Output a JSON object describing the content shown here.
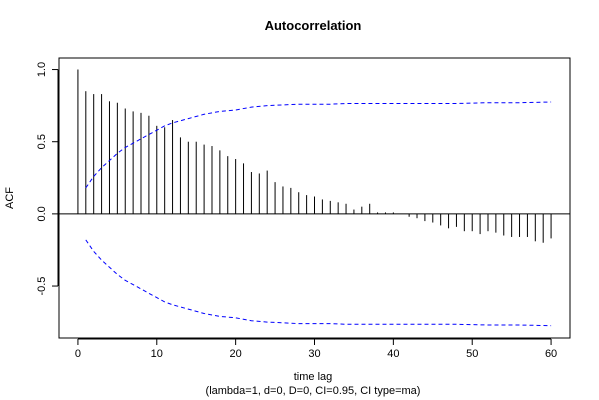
{
  "chart_data": {
    "type": "bar",
    "title": "Autocorrelation",
    "xlabel": "time lag",
    "subtitle": "(lambda=1, d=0, D=0, CI=0.95, CI type=ma)",
    "ylabel": "ACF",
    "xlim": [
      -2.4,
      62.4
    ],
    "ylim": [
      -0.86,
      1.08
    ],
    "x_ticks": [
      "0",
      "10",
      "20",
      "30",
      "40",
      "50",
      "60"
    ],
    "y_ticks": [
      "-0.5",
      "0.0",
      "0.5",
      "1.0"
    ],
    "lags": [
      0,
      1,
      2,
      3,
      4,
      5,
      6,
      7,
      8,
      9,
      10,
      11,
      12,
      13,
      14,
      15,
      16,
      17,
      18,
      19,
      20,
      21,
      22,
      23,
      24,
      25,
      26,
      27,
      28,
      29,
      30,
      31,
      32,
      33,
      34,
      35,
      36,
      37,
      38,
      39,
      40,
      41,
      42,
      43,
      44,
      45,
      46,
      47,
      48,
      49,
      50,
      51,
      52,
      53,
      54,
      55,
      56,
      57,
      58,
      59,
      60
    ],
    "values": [
      1.0,
      0.85,
      0.83,
      0.83,
      0.78,
      0.77,
      0.73,
      0.71,
      0.7,
      0.68,
      0.61,
      0.6,
      0.65,
      0.53,
      0.5,
      0.5,
      0.48,
      0.47,
      0.44,
      0.4,
      0.38,
      0.35,
      0.29,
      0.28,
      0.3,
      0.22,
      0.19,
      0.18,
      0.15,
      0.13,
      0.12,
      0.1,
      0.09,
      0.08,
      0.07,
      0.03,
      0.05,
      0.07,
      0.01,
      0.01,
      0.01,
      0.0,
      -0.02,
      -0.03,
      -0.05,
      -0.06,
      -0.08,
      -0.1,
      -0.09,
      -0.12,
      -0.12,
      -0.14,
      -0.12,
      -0.13,
      -0.15,
      -0.16,
      -0.16,
      -0.16,
      -0.19,
      -0.2,
      -0.17
    ],
    "ci_lags": [
      1,
      2,
      3,
      4,
      5,
      6,
      7,
      8,
      9,
      10,
      11,
      12,
      14,
      16,
      18,
      20,
      22,
      24,
      26,
      28,
      30,
      32,
      34,
      36,
      38,
      40,
      44,
      48,
      52,
      56,
      60
    ],
    "ci_upper": [
      0.18,
      0.26,
      0.32,
      0.37,
      0.42,
      0.46,
      0.49,
      0.52,
      0.55,
      0.58,
      0.61,
      0.63,
      0.66,
      0.69,
      0.71,
      0.72,
      0.74,
      0.75,
      0.755,
      0.76,
      0.76,
      0.76,
      0.765,
      0.765,
      0.765,
      0.765,
      0.765,
      0.765,
      0.77,
      0.77,
      0.775
    ],
    "ci_lower": [
      -0.18,
      -0.26,
      -0.32,
      -0.37,
      -0.42,
      -0.46,
      -0.49,
      -0.52,
      -0.55,
      -0.58,
      -0.61,
      -0.63,
      -0.66,
      -0.69,
      -0.71,
      -0.72,
      -0.74,
      -0.75,
      -0.755,
      -0.76,
      -0.76,
      -0.76,
      -0.765,
      -0.765,
      -0.765,
      -0.765,
      -0.765,
      -0.765,
      -0.77,
      -0.77,
      -0.775
    ],
    "colors": {
      "bars": "#000000",
      "ci": "#0000ff",
      "zero_line": "#000000"
    },
    "grid": false,
    "legend": "none"
  }
}
